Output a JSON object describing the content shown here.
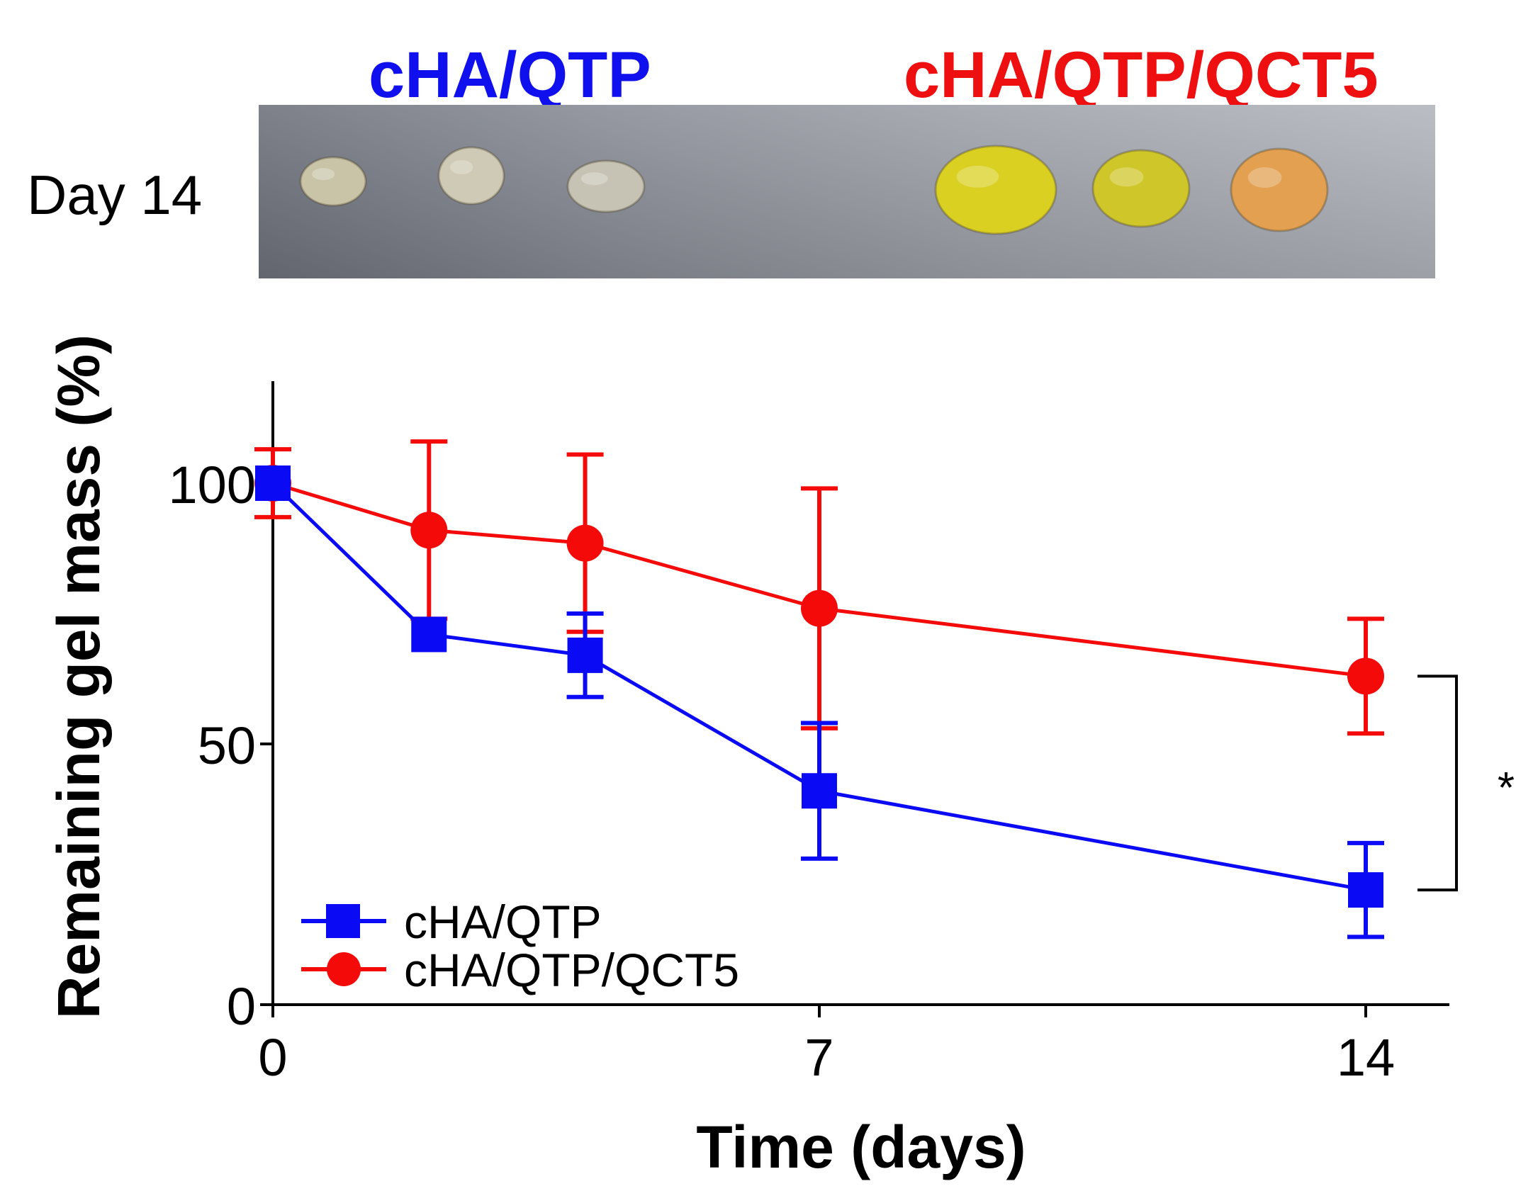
{
  "photo_panel": {
    "day_label": "Day 14",
    "group_titles": [
      {
        "text": "cHA/QTP",
        "color": "#1010ee"
      },
      {
        "text": "cHA/QTP/QCT5",
        "color": "#ee1010"
      }
    ],
    "gel_samples": [
      {
        "group": "cHA/QTP",
        "color": "#c9c4a8"
      },
      {
        "group": "cHA/QTP",
        "color": "#cfcab5"
      },
      {
        "group": "cHA/QTP",
        "color": "#c7c3b4"
      },
      {
        "group": "cHA/QTP/QCT5",
        "color": "#d9d022"
      },
      {
        "group": "cHA/QTP/QCT5",
        "color": "#cfc72a"
      },
      {
        "group": "cHA/QTP/QCT5",
        "color": "#e2a050"
      }
    ]
  },
  "chart_data": {
    "type": "line",
    "xlabel": "Time (days)",
    "ylabel": "Remaining gel mass (%)",
    "xlim": [
      0,
      15.2
    ],
    "ylim": [
      0,
      121
    ],
    "xticks": [
      0,
      7,
      14
    ],
    "yticks": [
      0,
      50,
      100
    ],
    "series": [
      {
        "name": "cHA/QTP",
        "color": "#0a0af5",
        "marker": "square",
        "x": [
          0,
          2,
          4,
          7,
          14
        ],
        "y": [
          100,
          71,
          67,
          41,
          22
        ],
        "error": [
          0,
          0,
          8,
          13,
          9
        ]
      },
      {
        "name": "cHA/QTP/QCT5",
        "color": "#f50a0a",
        "marker": "circle",
        "x": [
          0,
          2,
          4,
          7,
          14
        ],
        "y": [
          100,
          91,
          88.5,
          76,
          63
        ],
        "error": [
          6.5,
          17,
          17,
          23,
          11
        ]
      }
    ],
    "legend_position": "bottom-left",
    "significance": {
      "label": "*",
      "between": "cHA/QTP vs cHA/QTP/QCT5",
      "at_x": 14
    }
  }
}
